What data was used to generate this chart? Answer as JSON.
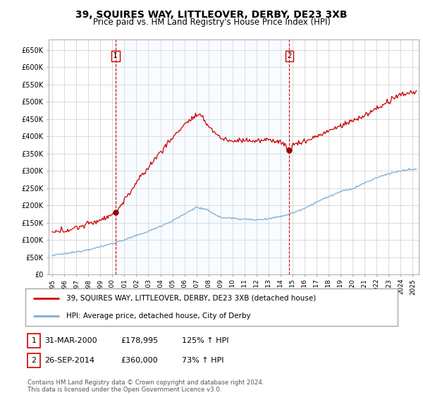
{
  "title": "39, SQUIRES WAY, LITTLEOVER, DERBY, DE23 3XB",
  "subtitle": "Price paid vs. HM Land Registry's House Price Index (HPI)",
  "title_fontsize": 10,
  "subtitle_fontsize": 8.5,
  "xlim_start": 1994.7,
  "xlim_end": 2025.5,
  "ylim_min": 0,
  "ylim_max": 680000,
  "yticks": [
    0,
    50000,
    100000,
    150000,
    200000,
    250000,
    300000,
    350000,
    400000,
    450000,
    500000,
    550000,
    600000,
    650000
  ],
  "ytick_labels": [
    "£0",
    "£50K",
    "£100K",
    "£150K",
    "£200K",
    "£250K",
    "£300K",
    "£350K",
    "£400K",
    "£450K",
    "£500K",
    "£550K",
    "£600K",
    "£650K"
  ],
  "hpi_color": "#7aadd4",
  "price_color": "#cc0000",
  "marker_color": "#990000",
  "vline_color": "#cc0000",
  "shade_color": "#ddeeff",
  "point1_x": 2000.25,
  "point1_y": 178995,
  "point1_label": "1",
  "point2_x": 2014.73,
  "point2_y": 360000,
  "point2_label": "2",
  "legend_line1": "39, SQUIRES WAY, LITTLEOVER, DERBY, DE23 3XB (detached house)",
  "legend_line2": "HPI: Average price, detached house, City of Derby",
  "table_row1": [
    "1",
    "31-MAR-2000",
    "£178,995",
    "125% ↑ HPI"
  ],
  "table_row2": [
    "2",
    "26-SEP-2014",
    "£360,000",
    "73% ↑ HPI"
  ],
  "footer": "Contains HM Land Registry data © Crown copyright and database right 2024.\nThis data is licensed under the Open Government Licence v3.0.",
  "bg_color": "#ffffff",
  "grid_color": "#cccccc",
  "xtick_years": [
    1995,
    1996,
    1997,
    1998,
    1999,
    2000,
    2001,
    2002,
    2003,
    2004,
    2005,
    2006,
    2007,
    2008,
    2009,
    2010,
    2011,
    2012,
    2013,
    2014,
    2015,
    2016,
    2017,
    2018,
    2019,
    2020,
    2021,
    2022,
    2023,
    2024,
    2025
  ]
}
